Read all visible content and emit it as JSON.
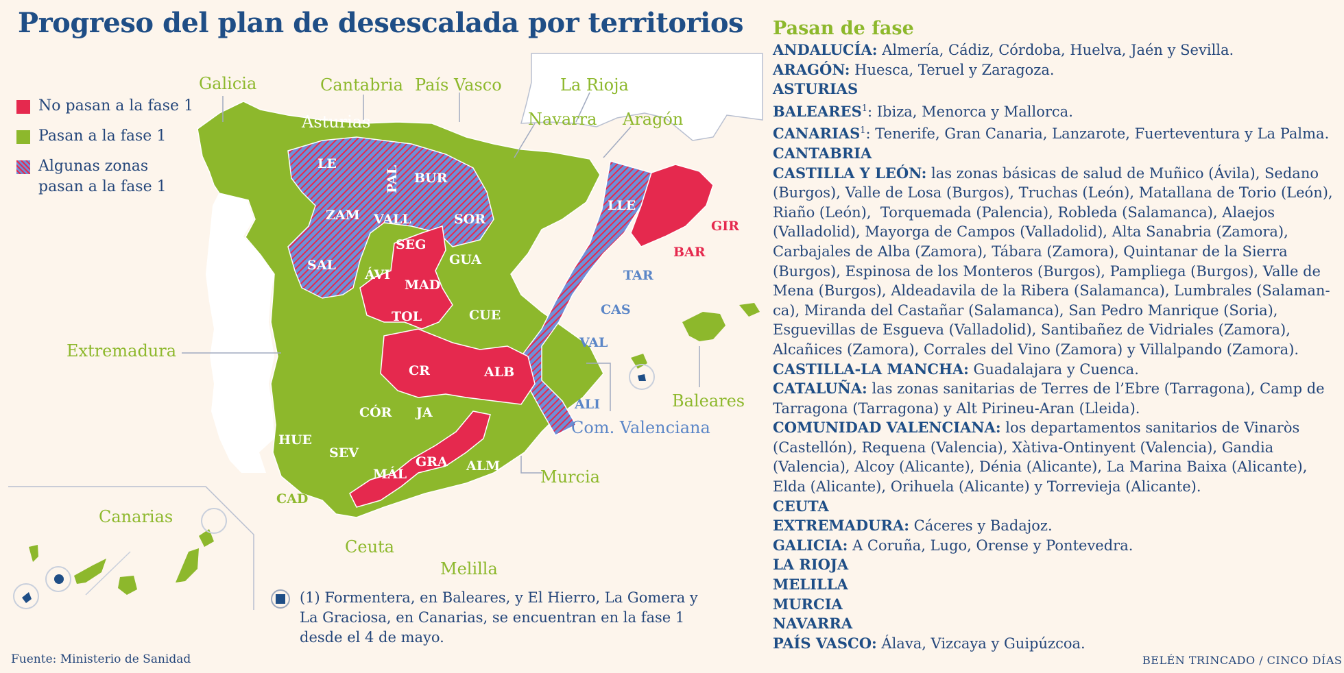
{
  "title": "Progreso del plan de desescalada por territorios",
  "legend": [
    {
      "label": "No pasan a la fase 1",
      "color": "#e5294e"
    },
    {
      "label": "Pasan a la fase 1",
      "color": "#8db82c"
    },
    {
      "label": "Algunas zonas\npasan a la fase 1",
      "color": "#6f8fd8"
    }
  ],
  "colors": {
    "red": "#e5294e",
    "green": "#8db82c",
    "blue": "#6f8fd8",
    "title": "#1f4e86",
    "region_label_green": "#8db82c",
    "region_label_blue": "#5b86c7"
  },
  "map": {
    "region_labels": {
      "galicia": "Galicia",
      "cantabria": "Cantabria",
      "pais_vasco": "País Vasco",
      "la_rioja": "La Rioja",
      "asturias": "Asturias",
      "navarra": "Navarra",
      "aragon": "Aragón",
      "extremadura": "Extremadura",
      "murcia": "Murcia",
      "com_valenciana": "Com. Valenciana",
      "baleares": "Baleares",
      "canarias": "Canarias",
      "ceuta": "Ceuta",
      "melilla": "Melilla"
    },
    "province_labels": {
      "le": "LE",
      "pal": "PAL",
      "bur": "BUR",
      "zam": "ZAM",
      "vall": "VALL",
      "sor": "SOR",
      "seg": "SEG",
      "sal": "SAL",
      "avi": "ÁVI",
      "gua": "GUA",
      "mad": "MAD",
      "cue": "CUE",
      "tol": "TOL",
      "cr": "CR",
      "alb": "ALB",
      "cor": "CÓR",
      "ja": "JA",
      "hue": "HUE",
      "sev": "SEV",
      "mal": "MÁL",
      "gra": "GRA",
      "alm": "ALM",
      "cad": "CAD",
      "lle": "LLE",
      "gir": "GIR",
      "bar": "BAR",
      "tar": "TAR",
      "cas": "CAS",
      "val": "VAL",
      "ali": "ALI"
    }
  },
  "footnote": "(1) Formentera, en Baleares, y El Hierro, La Gomera y La Graciosa, en Canarias, se encuentran en la fase 1 desde el 4 de mayo.",
  "source": "Fuente: Ministerio de Sanidad",
  "credit": "BELÉN TRINCADO / CINCO DÍAS",
  "panel": {
    "title": "Pasan de fase",
    "items": [
      {
        "region": "ANDALUCÍA:",
        "sup": "",
        "text": " Almería, Cádiz, Córdoba, Huelva, Jaén y Sevilla."
      },
      {
        "region": "ARAGÓN:",
        "sup": "",
        "text": " Huesca, Teruel y Zaragoza."
      },
      {
        "region": "ASTURIAS",
        "sup": "",
        "text": ""
      },
      {
        "region": "BALEARES",
        "sup": "1",
        "text": ": Ibiza, Menorca y Mallorca."
      },
      {
        "region": "CANARIAS",
        "sup": "1",
        "text": ": Tenerife, Gran Canaria, Lanzarote, Fuerteventura y La Palma."
      },
      {
        "region": "CANTABRIA",
        "sup": "",
        "text": ""
      },
      {
        "region": "CASTILLA Y LEÓN:",
        "sup": "",
        "text": " las zonas básicas de salud de Muñico (Ávila), Sedano (Burgos), Valle de Losa (Burgos), Truchas (León), Matallana de Torio (León), Riaño (León),  Torquemada (Palencia), Robleda (Salamanca), Alaejos (Valladolid), Mayorga de Campos (Valladolid), Alta Sanabria (Zamora), Carbajales de Alba (Zamora), Tábara (Zamora), Quintanar de la Sierra (Burgos), Espinosa de los Monteros (Burgos), Pampliega (Burgos), Valle de Mena (Burgos), Aldeadavila de la Ribera (Salamanca), Lumbrales (Salaman-ca), Miranda del Castañar (Salamanca), San Pedro Manrique (Soria), Esguevillas de Esgueva (Valladolid), Santibañez de Vidriales (Zamora), Alcañices (Zamora), Corrales del Vino (Zamora) y Villalpando (Zamora)."
      },
      {
        "region": "CASTILLA-LA MANCHA:",
        "sup": "",
        "text": " Guadalajara y Cuenca."
      },
      {
        "region": "CATALUÑA:",
        "sup": "",
        "text": " las zonas sanitarias de Terres de l’Ebre (Tarragona), Camp de Tarragona (Tarragona) y Alt Pirineu-Aran (Lleida)."
      },
      {
        "region": "COMUNIDAD VALENCIANA:",
        "sup": "",
        "text": " los departamentos sanitarios de Vinaròs (Castellón), Requena (Valencia), Xàtiva-Ontinyent (Valencia), Gandia (Valencia), Alcoy (Alicante), Dénia (Alicante), La Marina Baixa (Alicante), Elda (Alicante), Orihuela (Alicante) y Torrevieja (Alicante)."
      },
      {
        "region": "CEUTA",
        "sup": "",
        "text": ""
      },
      {
        "region": "EXTREMADURA:",
        "sup": "",
        "text": " Cáceres y Badajoz."
      },
      {
        "region": "GALICIA:",
        "sup": "",
        "text": " A Coruña, Lugo, Orense y Pontevedra."
      },
      {
        "region": "LA RIOJA",
        "sup": "",
        "text": ""
      },
      {
        "region": "MELILLA",
        "sup": "",
        "text": ""
      },
      {
        "region": "MURCIA",
        "sup": "",
        "text": ""
      },
      {
        "region": "NAVARRA",
        "sup": "",
        "text": ""
      },
      {
        "region": "PAÍS VASCO:",
        "sup": "",
        "text": " Álava, Vizcaya y Guipúzcoa."
      }
    ]
  }
}
